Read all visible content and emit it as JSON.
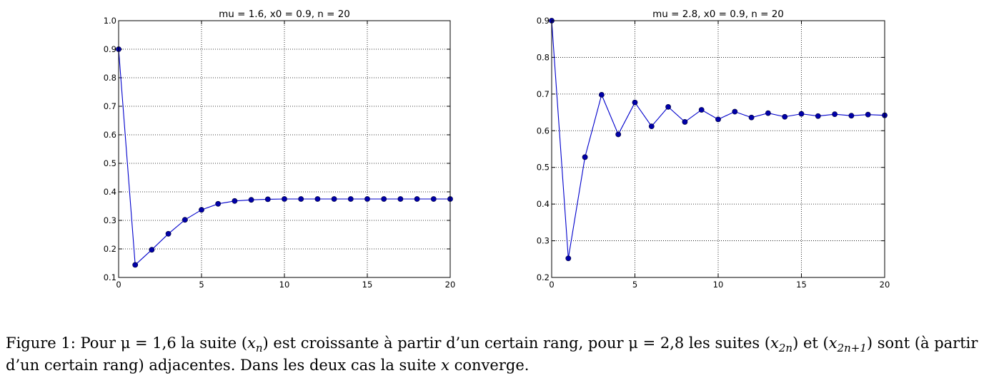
{
  "chart_data": [
    {
      "type": "line",
      "title": "mu = 1.6, x0 = 0.9, n = 20",
      "xlabel": "",
      "ylabel": "",
      "xlim": [
        0,
        20
      ],
      "ylim": [
        0.1,
        1.0
      ],
      "xticks": [
        0,
        5,
        10,
        15,
        20
      ],
      "yticks": [
        0.1,
        0.2,
        0.3,
        0.4,
        0.5,
        0.6,
        0.7,
        0.8,
        0.9,
        1.0
      ],
      "xtick_labels": [
        "0",
        "5",
        "10",
        "15",
        "20"
      ],
      "ytick_labels": [
        "0.1",
        "0.2",
        "0.3",
        "0.4",
        "0.5",
        "0.6",
        "0.7",
        "0.8",
        "0.9",
        "1.0"
      ],
      "grid": true,
      "series": [
        {
          "color": "#0000cc",
          "x": [
            0,
            1,
            2,
            3,
            4,
            5,
            6,
            7,
            8,
            9,
            10,
            11,
            12,
            13,
            14,
            15,
            16,
            17,
            18,
            19,
            20
          ],
          "y": [
            0.9,
            0.144,
            0.197,
            0.253,
            0.302,
            0.337,
            0.358,
            0.368,
            0.372,
            0.374,
            0.375,
            0.375,
            0.375,
            0.375,
            0.375,
            0.375,
            0.375,
            0.375,
            0.375,
            0.375,
            0.375
          ]
        }
      ]
    },
    {
      "type": "line",
      "title": "mu = 2.8, x0 = 0.9, n = 20",
      "xlabel": "",
      "ylabel": "",
      "xlim": [
        0,
        20
      ],
      "ylim": [
        0.2,
        0.9
      ],
      "xticks": [
        0,
        5,
        10,
        15,
        20
      ],
      "yticks": [
        0.2,
        0.3,
        0.4,
        0.5,
        0.6,
        0.7,
        0.8,
        0.9
      ],
      "xtick_labels": [
        "0",
        "5",
        "10",
        "15",
        "20"
      ],
      "ytick_labels": [
        "0.2",
        "0.3",
        "0.4",
        "0.5",
        "0.6",
        "0.7",
        "0.8",
        "0.9"
      ],
      "grid": true,
      "series": [
        {
          "color": "#0000cc",
          "x": [
            0,
            1,
            2,
            3,
            4,
            5,
            6,
            7,
            8,
            9,
            10,
            11,
            12,
            13,
            14,
            15,
            16,
            17,
            18,
            19,
            20
          ],
          "y": [
            0.9,
            0.252,
            0.528,
            0.698,
            0.59,
            0.677,
            0.612,
            0.665,
            0.624,
            0.657,
            0.631,
            0.652,
            0.636,
            0.648,
            0.638,
            0.646,
            0.64,
            0.645,
            0.641,
            0.644,
            0.642
          ]
        }
      ]
    }
  ],
  "caption": {
    "label": "Figure 1:",
    "part1": "Pour μ = 1,6 la suite (",
    "xn_var": "x",
    "xn_sub": "n",
    "part2": ") est croissante à partir d’un certain rang, pour μ = 2,8 les suites (",
    "x2n_var": "x",
    "x2n_sub": "2n",
    "part3": ") et (",
    "x2n1_var": "x",
    "x2n1_sub": "2n+1",
    "part4": ") sont (à partir d’un certain rang) adjacentes. Dans les deux cas la suite ",
    "x_var": "x",
    "part5": " converge."
  }
}
